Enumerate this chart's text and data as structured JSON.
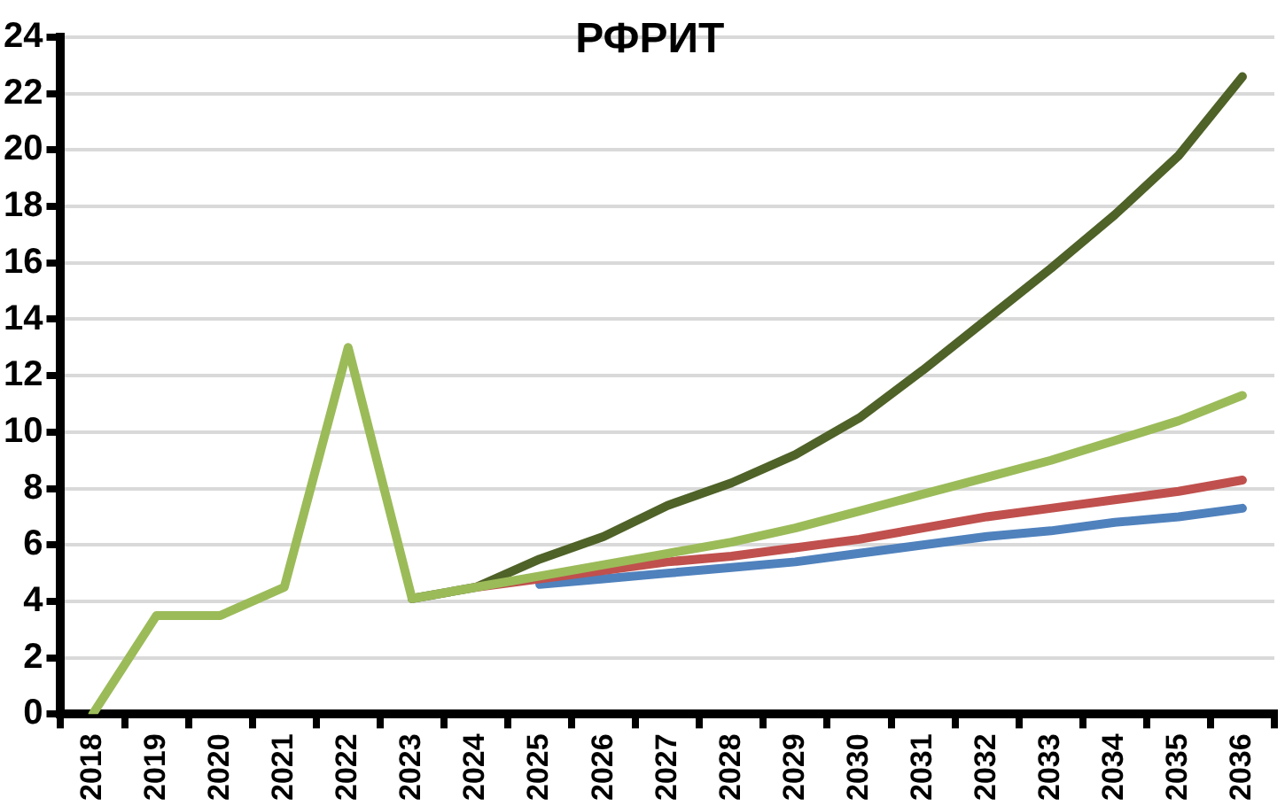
{
  "chart_data": {
    "type": "line",
    "title": "РФРИТ",
    "categories": [
      "2018",
      "2019",
      "2020",
      "2021",
      "2022",
      "2023",
      "2024",
      "2025",
      "2026",
      "2027",
      "2028",
      "2029",
      "2030",
      "2031",
      "2032",
      "2033",
      "2034",
      "2035",
      "2036"
    ],
    "series": [
      {
        "color": "#9bbb59",
        "values": [
          0,
          3.5,
          3.5,
          4.5,
          13,
          4.1,
          4.5,
          4.9,
          5.3,
          5.7,
          6.1,
          6.6,
          7.2,
          7.8,
          8.4,
          9.0,
          9.7,
          10.4,
          11.3
        ]
      },
      {
        "color": "#c0504d",
        "values": [
          null,
          null,
          null,
          null,
          null,
          null,
          4.5,
          4.8,
          5.1,
          5.4,
          5.6,
          5.9,
          6.2,
          6.6,
          7.0,
          7.3,
          7.6,
          7.9,
          8.3
        ]
      },
      {
        "color": "#4f81bd",
        "values": [
          null,
          null,
          null,
          null,
          null,
          null,
          null,
          4.6,
          4.8,
          5.0,
          5.2,
          5.4,
          5.7,
          6.0,
          6.3,
          6.5,
          6.8,
          7.0,
          7.3
        ]
      },
      {
        "color": "#4f6228",
        "values": [
          null,
          null,
          null,
          null,
          null,
          4.1,
          4.5,
          5.5,
          6.3,
          7.4,
          8.2,
          9.2,
          10.5,
          12.2,
          14.0,
          15.8,
          17.7,
          19.8,
          22.6
        ]
      }
    ],
    "ylim": [
      0,
      24
    ],
    "yticks": [
      0,
      2,
      4,
      6,
      8,
      10,
      12,
      14,
      16,
      18,
      20,
      22,
      24
    ],
    "grid": "y",
    "legend": false,
    "marker": "none",
    "line_style": "solid"
  }
}
